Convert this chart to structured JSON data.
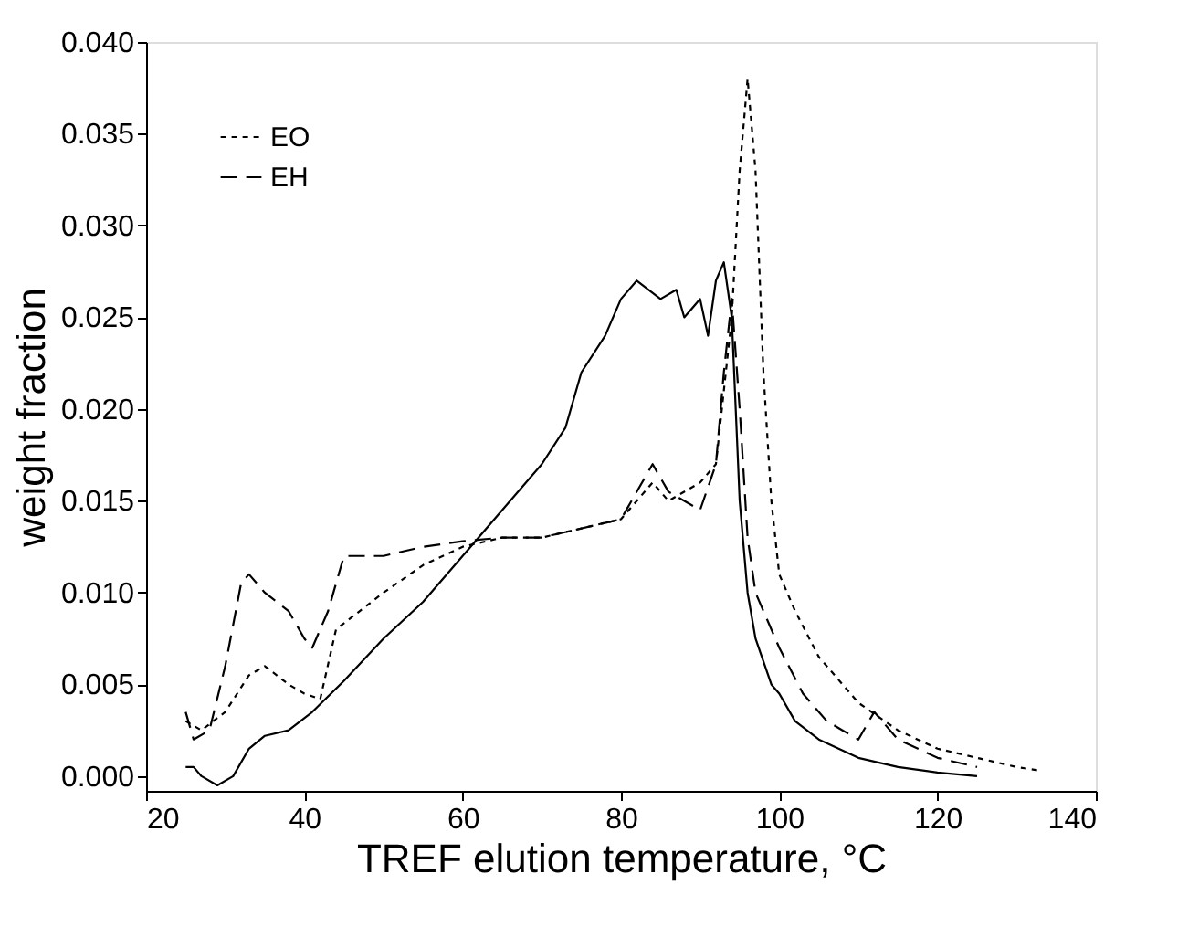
{
  "chart_data": {
    "type": "line",
    "xlabel": "TREF elution temperature, °C",
    "ylabel": "weight fraction",
    "xlim": [
      20,
      140
    ],
    "ylim": [
      -0.0008,
      0.04
    ],
    "xticks": [
      20,
      40,
      60,
      80,
      100,
      120,
      140
    ],
    "yticks": [
      {
        "value": 0,
        "label": "0.000"
      },
      {
        "value": 0.005,
        "label": "0.005"
      },
      {
        "value": 0.01,
        "label": "0.010"
      },
      {
        "value": 0.015,
        "label": "0.015"
      },
      {
        "value": 0.02,
        "label": "0.020"
      },
      {
        "value": 0.025,
        "label": "0.025"
      },
      {
        "value": 0.03,
        "label": "0.030"
      },
      {
        "value": 0.035,
        "label": "0.035"
      },
      {
        "value": 0.04,
        "label": "0.040"
      }
    ],
    "grid": false,
    "legend": "top left",
    "series": [
      {
        "name": "EO",
        "color": "#000000",
        "line_style": "dotted",
        "x": [
          25,
          27,
          30,
          33,
          35,
          38,
          40,
          42,
          44,
          47,
          50,
          55,
          60,
          65,
          70,
          75,
          80,
          84,
          86,
          90,
          92,
          94,
          95,
          96,
          97,
          98,
          99,
          100,
          102,
          105,
          110,
          115,
          120,
          125,
          130,
          133
        ],
        "values": [
          0.003,
          0.0025,
          0.0035,
          0.0055,
          0.006,
          0.005,
          0.0045,
          0.0042,
          0.008,
          0.009,
          0.01,
          0.0115,
          0.0125,
          0.013,
          0.013,
          0.0135,
          0.014,
          0.016,
          0.015,
          0.016,
          0.017,
          0.025,
          0.033,
          0.038,
          0.033,
          0.022,
          0.015,
          0.011,
          0.009,
          0.0065,
          0.004,
          0.0025,
          0.0015,
          0.001,
          0.0005,
          0.0003
        ]
      },
      {
        "name": "EH",
        "color": "#000000",
        "line_style": "dashed",
        "x": [
          25,
          26,
          28,
          30,
          32,
          33,
          35,
          38,
          40,
          41,
          43,
          45,
          50,
          55,
          60,
          65,
          70,
          80,
          84,
          86,
          90,
          92,
          93,
          94,
          95,
          96,
          97,
          100,
          103,
          106,
          108,
          110,
          112,
          113,
          115,
          120,
          125
        ],
        "values": [
          0.0035,
          0.002,
          0.0025,
          0.006,
          0.0105,
          0.011,
          0.01,
          0.009,
          0.0075,
          0.007,
          0.009,
          0.012,
          0.012,
          0.0125,
          0.0128,
          0.013,
          0.013,
          0.014,
          0.017,
          0.0155,
          0.0145,
          0.017,
          0.022,
          0.026,
          0.02,
          0.013,
          0.01,
          0.007,
          0.0045,
          0.003,
          0.0025,
          0.002,
          0.0035,
          0.003,
          0.002,
          0.001,
          0.0005
        ]
      },
      {
        "color": "#000000",
        "line_style": "solid",
        "x": [
          25,
          26,
          27,
          29,
          31,
          33,
          35,
          38,
          41,
          45,
          50,
          55,
          60,
          65,
          70,
          73,
          75,
          78,
          80,
          82,
          85,
          87,
          88,
          90,
          91,
          92,
          93,
          94,
          95,
          96,
          97,
          99,
          100,
          102,
          105,
          110,
          115,
          120,
          125
        ],
        "values": [
          0.0005,
          0.0005,
          0,
          -0.0005,
          0,
          0.0015,
          0.0022,
          0.0025,
          0.0035,
          0.0052,
          0.0075,
          0.0095,
          0.012,
          0.0145,
          0.017,
          0.019,
          0.022,
          0.024,
          0.026,
          0.027,
          0.026,
          0.0265,
          0.025,
          0.026,
          0.024,
          0.027,
          0.028,
          0.025,
          0.015,
          0.01,
          0.0075,
          0.005,
          0.0045,
          0.003,
          0.002,
          0.001,
          0.0005,
          0.0002,
          0
        ]
      }
    ]
  }
}
